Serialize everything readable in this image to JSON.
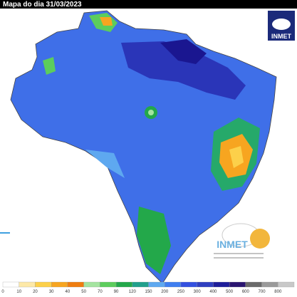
{
  "header": {
    "title": "Mapa do dia 31/03/2023"
  },
  "logos": {
    "top": "INMET",
    "bottom": "INMET"
  },
  "colorbar": {
    "ticks": [
      0,
      10,
      20,
      30,
      40,
      50,
      70,
      90,
      120,
      150,
      200,
      250,
      300,
      400,
      500,
      600,
      700,
      800
    ],
    "colors": [
      "#ffffff",
      "#fde9a8",
      "#fcd04a",
      "#f7a520",
      "#ef7d10",
      "#a4e4a0",
      "#5ccd5c",
      "#23a84a",
      "#21a08c",
      "#5ea8f0",
      "#3f7ef0",
      "#3350e0",
      "#2f3fc0",
      "#1e1e9a",
      "#2a1570",
      "#6a6a6a",
      "#9a9a9a",
      "#c8c8c8"
    ]
  }
}
